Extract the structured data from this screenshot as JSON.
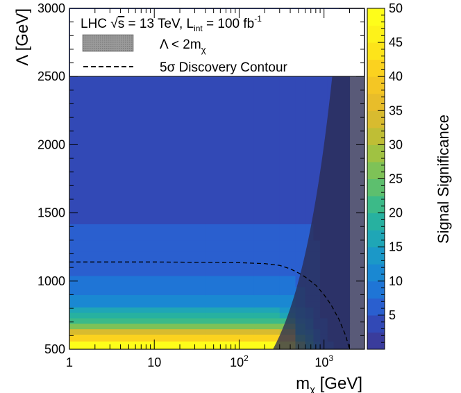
{
  "chart_data": {
    "type": "heatmap",
    "title": "",
    "xlabel": "m",
    "xlabel_sub": "χ",
    "xlabel_unit": " [GeV]",
    "ylabel": "Λ [GeV]",
    "zlabel": "Signal Significance",
    "x_scale": "log",
    "xlim": [
      1,
      3000
    ],
    "ylim": [
      500,
      3000
    ],
    "zlim": [
      0,
      50
    ],
    "x_ticks": [
      {
        "value": 1,
        "label": "1"
      },
      {
        "value": 10,
        "label": "10"
      },
      {
        "value": 100,
        "base": "10",
        "exp": "2"
      },
      {
        "value": 1000,
        "base": "10",
        "exp": "3"
      }
    ],
    "y_ticks": [
      {
        "value": 500,
        "label": "500"
      },
      {
        "value": 1000,
        "label": "1000"
      },
      {
        "value": 1500,
        "label": "1500"
      },
      {
        "value": 2000,
        "label": "2000"
      },
      {
        "value": 2500,
        "label": "2500"
      },
      {
        "value": 3000,
        "label": "3000"
      }
    ],
    "z_ticks": [
      {
        "value": 5,
        "label": "5"
      },
      {
        "value": 10,
        "label": "10"
      },
      {
        "value": 15,
        "label": "15"
      },
      {
        "value": 20,
        "label": "20"
      },
      {
        "value": 25,
        "label": "25"
      },
      {
        "value": 30,
        "label": "30"
      },
      {
        "value": 35,
        "label": "35"
      },
      {
        "value": 40,
        "label": "40"
      },
      {
        "value": 45,
        "label": "45"
      },
      {
        "value": 50,
        "label": "50"
      }
    ],
    "colorbar_colors": [
      "#3a3c9c",
      "#3249b6",
      "#2a5fcf",
      "#1f75d6",
      "#1a88d2",
      "#1b98c8",
      "#1fa6b6",
      "#27b1a0",
      "#3cba88",
      "#5dbf6e",
      "#7ec257",
      "#a0c242",
      "#bfbe35",
      "#d8bb2f",
      "#e8bd2a",
      "#f4c624",
      "#fbd21f",
      "#fde41a",
      "#fdf21a",
      "#fefd1a"
    ],
    "grid": false,
    "cells_note_free": true,
    "cell_columns": [
      1,
      40,
      150,
      300,
      460,
      600,
      750,
      900,
      1100,
      1300,
      2000
    ],
    "rows": [
      {
        "y": [
          500,
          560
        ],
        "z": [
          49,
          49,
          49,
          49,
          25,
          18,
          10,
          7,
          5,
          3
        ]
      },
      {
        "y": [
          560,
          610
        ],
        "z": [
          40,
          40,
          40,
          38,
          20,
          15,
          9,
          6,
          4,
          3
        ]
      },
      {
        "y": [
          610,
          650
        ],
        "z": [
          33,
          33,
          33,
          30,
          17,
          13,
          8,
          6,
          4,
          3
        ]
      },
      {
        "y": [
          650,
          690
        ],
        "z": [
          27,
          27,
          27,
          25,
          15,
          11,
          7,
          5,
          4,
          3
        ]
      },
      {
        "y": [
          690,
          730
        ],
        "z": [
          22,
          22,
          22,
          20,
          13,
          10,
          7,
          5,
          3,
          3
        ]
      },
      {
        "y": [
          730,
          770
        ],
        "z": [
          18,
          18,
          18,
          16,
          11,
          9,
          6,
          4,
          3,
          3
        ]
      },
      {
        "y": [
          770,
          810
        ],
        "z": [
          15,
          15,
          15,
          14,
          10,
          8,
          6,
          4,
          3,
          3
        ]
      },
      {
        "y": [
          810,
          850
        ],
        "z": [
          12,
          12,
          12,
          11,
          9,
          7,
          5,
          4,
          3,
          3
        ]
      },
      {
        "y": [
          850,
          900
        ],
        "z": [
          10,
          10,
          10,
          10,
          8,
          7,
          5,
          4,
          3,
          3
        ]
      },
      {
        "y": [
          900,
          960
        ],
        "z": [
          9,
          9,
          9,
          9,
          8,
          6,
          5,
          4,
          3,
          3
        ]
      },
      {
        "y": [
          960,
          1040
        ],
        "z": [
          8,
          8,
          8,
          8,
          7,
          6,
          5,
          4,
          3,
          3
        ]
      },
      {
        "y": [
          1040,
          1140
        ],
        "z": [
          7,
          7,
          7,
          7,
          7,
          6,
          5,
          4,
          3,
          3
        ]
      },
      {
        "y": [
          1140,
          1220
        ],
        "z": [
          7,
          7,
          7,
          7,
          6,
          6,
          5,
          4,
          3,
          3
        ]
      },
      {
        "y": [
          1220,
          1300
        ],
        "z": [
          7,
          7,
          7,
          7,
          6,
          5,
          5,
          4,
          3,
          3
        ]
      },
      {
        "y": [
          1300,
          1420
        ],
        "z": [
          6,
          6,
          6,
          6,
          6,
          5,
          4,
          4,
          3,
          3
        ]
      },
      {
        "y": [
          1420,
          2500
        ],
        "z": [
          4,
          4,
          4,
          4,
          4,
          4,
          4,
          4,
          4,
          4
        ]
      },
      {
        "y": [
          2500,
          3000
        ],
        "z": [
          4,
          4,
          4,
          4,
          4,
          4,
          4,
          4,
          4,
          4
        ]
      }
    ],
    "excluded_region": {
      "label_main": "Λ < 2m",
      "label_sub": "χ",
      "boundary": "Λ = 2·m_χ",
      "color": "#2a2c52"
    },
    "discovery_contour": {
      "label": "5σ Discovery Contour",
      "x": [
        1,
        10,
        30,
        100,
        200,
        300,
        400,
        500,
        600,
        800,
        1000,
        1200,
        1500,
        1800,
        2000
      ],
      "y": [
        1140,
        1140,
        1138,
        1135,
        1128,
        1115,
        1090,
        1060,
        1030,
        970,
        900,
        830,
        720,
        600,
        500
      ]
    },
    "legend": {
      "placement": "top",
      "line1_pre": "LHC ",
      "line1_sqrt_arg": "s",
      "line1_mid": " = 13 TeV, L",
      "line1_sub": "int",
      "line1_post": " = 100 fb",
      "line1_sup": "-1"
    }
  }
}
